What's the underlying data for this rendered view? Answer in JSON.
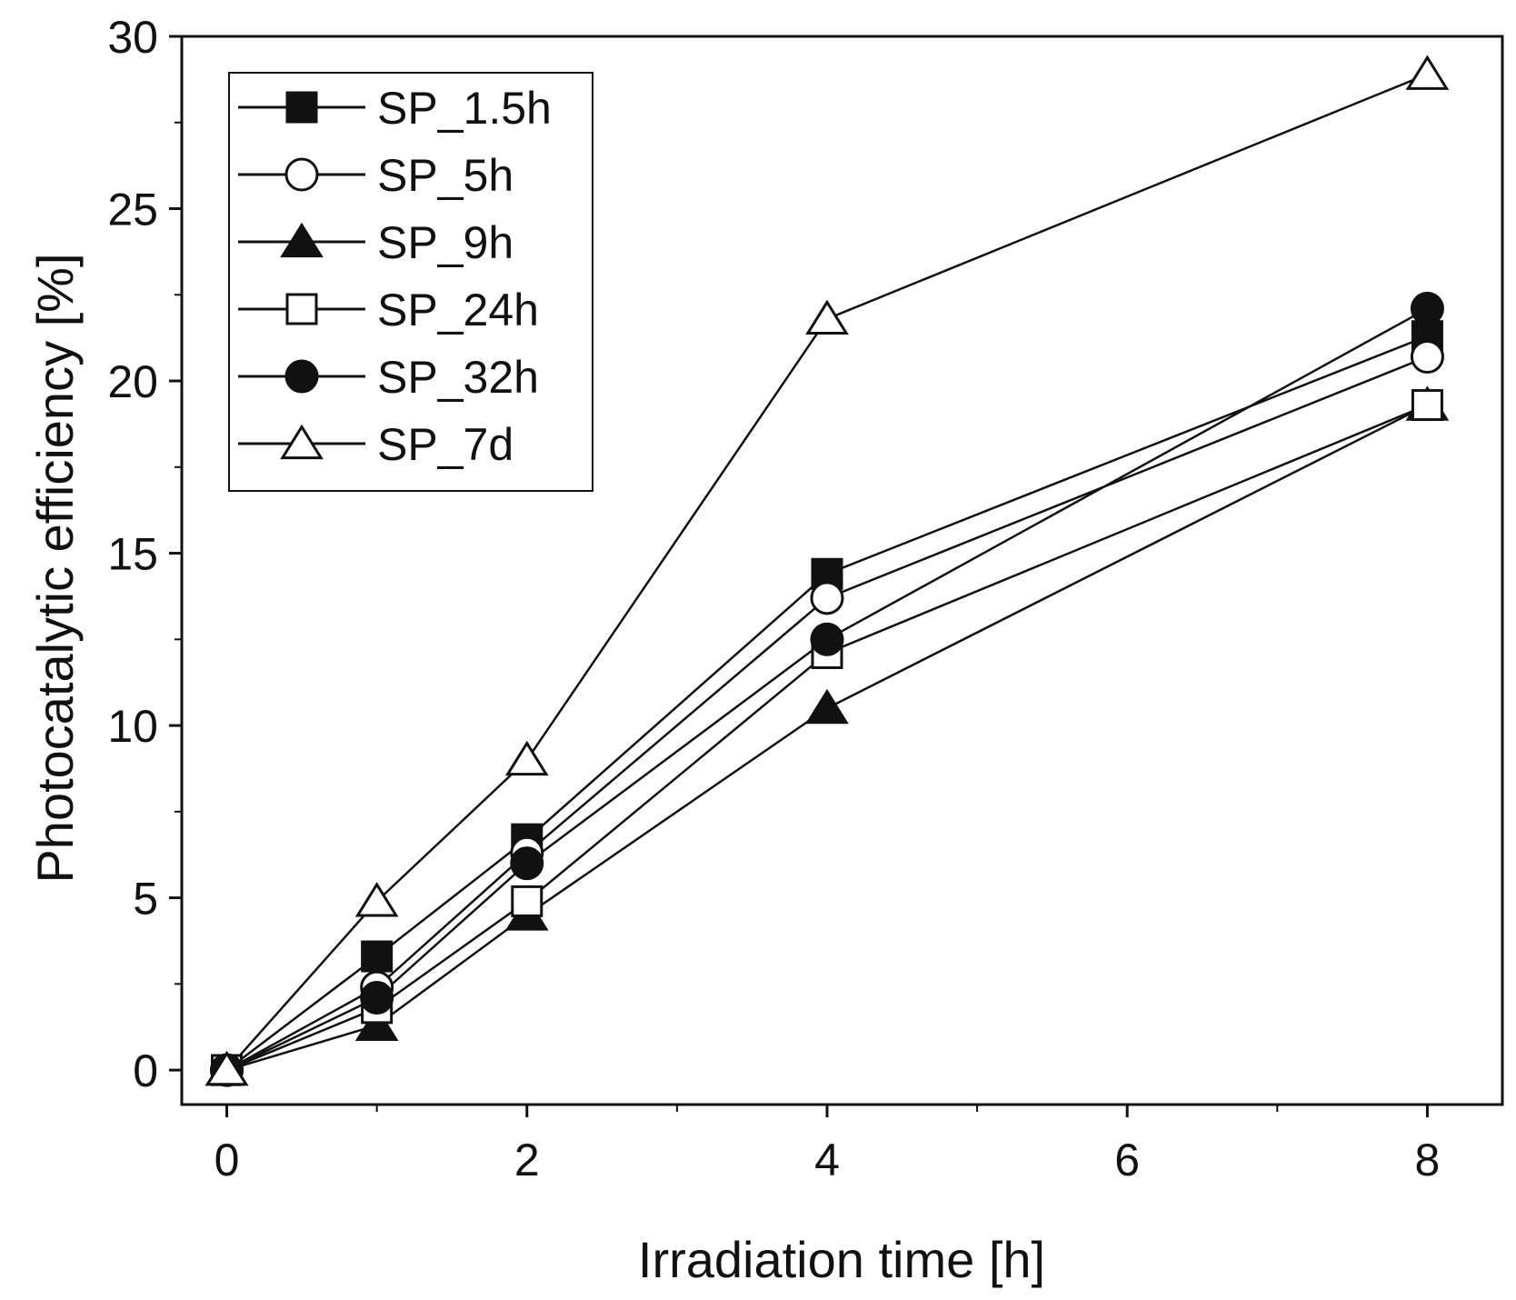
{
  "chart_data": {
    "type": "line",
    "title": "",
    "xlabel": "Irradiation time [h]",
    "ylabel": "Photocatalytic efficiency [%]",
    "xlim": [
      -0.3,
      8.5
    ],
    "ylim": [
      -1,
      30
    ],
    "x": [
      0,
      1,
      2,
      4,
      8
    ],
    "xticks": [
      0,
      2,
      4,
      6,
      8
    ],
    "xticks_minor": [
      1,
      3,
      5,
      7
    ],
    "yticks": [
      0,
      5,
      10,
      15,
      20,
      25,
      30
    ],
    "yticks_minor": [
      2.5,
      7.5,
      12.5,
      17.5,
      22.5,
      27.5
    ],
    "grid": false,
    "legend_position": "top-left",
    "series": [
      {
        "name": "SP_1.5h",
        "marker": "square",
        "filled": true,
        "values": [
          0,
          3.3,
          6.7,
          14.4,
          21.3
        ]
      },
      {
        "name": "SP_5h",
        "marker": "circle",
        "filled": false,
        "values": [
          0,
          2.4,
          6.3,
          13.7,
          20.7
        ]
      },
      {
        "name": "SP_9h",
        "marker": "triangle",
        "filled": true,
        "values": [
          0,
          1.3,
          4.5,
          10.5,
          19.3
        ]
      },
      {
        "name": "SP_24h",
        "marker": "square",
        "filled": false,
        "values": [
          0,
          1.8,
          4.9,
          12.1,
          19.3
        ]
      },
      {
        "name": "SP_32h",
        "marker": "circle",
        "filled": true,
        "values": [
          0,
          2.1,
          6.0,
          12.5,
          22.1
        ]
      },
      {
        "name": "SP_7d",
        "marker": "triangle",
        "filled": false,
        "values": [
          0,
          4.9,
          9.0,
          21.8,
          28.9
        ]
      }
    ]
  },
  "colors": {
    "line": "#111111",
    "marker_fill": "#111111",
    "background": "#ffffff"
  }
}
